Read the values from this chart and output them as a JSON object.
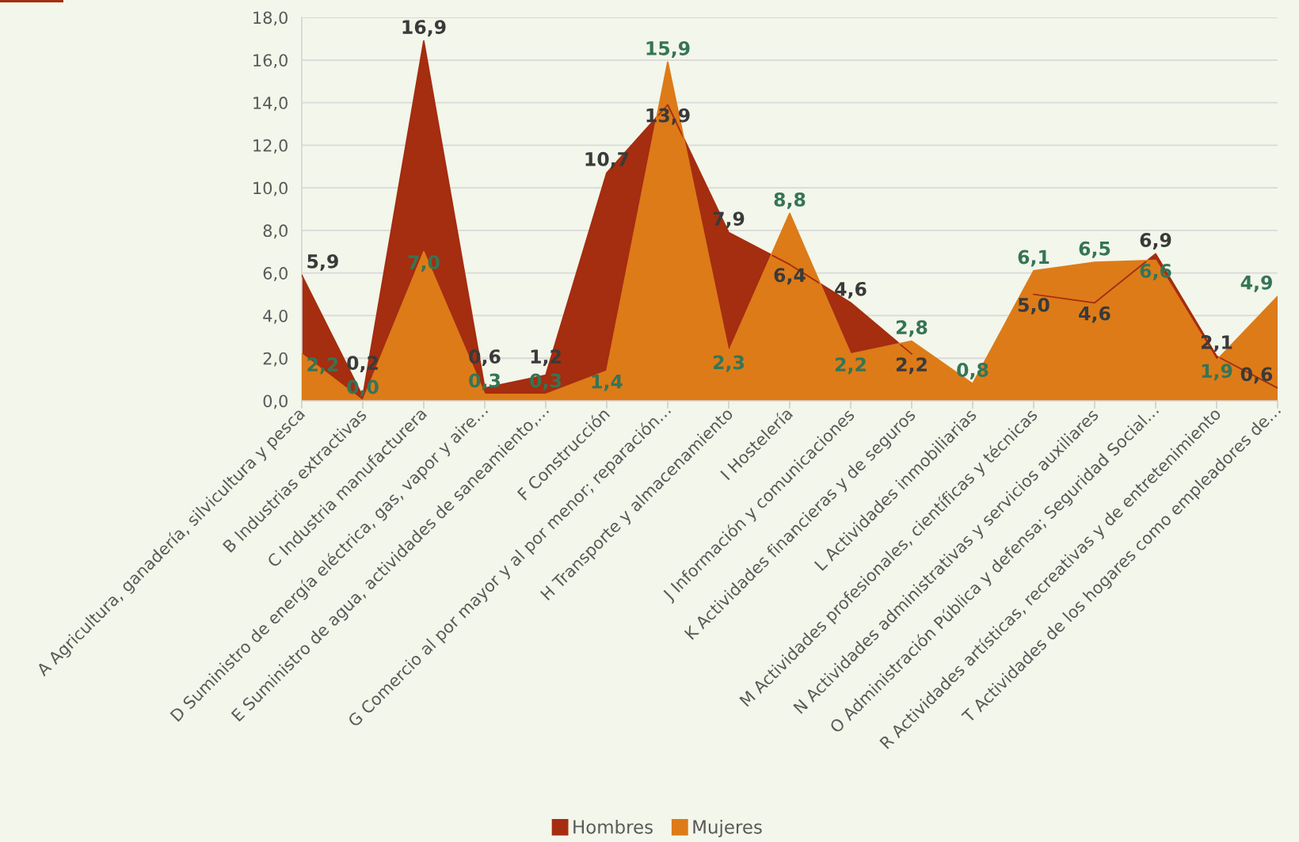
{
  "chart_data": {
    "type": "area",
    "categories": [
      "A Agricultura, ganadería, silvicultura y pesca",
      "B Industrias extractivas",
      "C Industria manufacturera",
      "D Suministro de energía eléctrica, gas, vapor y aire…",
      "E Suministro de agua, actividades de saneamiento,…",
      "F Construcción",
      "G Comercio al por mayor y al por menor; reparación…",
      "H Transporte y almacenamiento",
      "I Hostelería",
      "J Información y comunicaciones",
      "K Actividades financieras y de seguros",
      "L Actividades inmobiliarias",
      "M Actividades profesionales, científicas y técnicas",
      "N Actividades administrativas y servicios auxiliares",
      "O Administración Pública y defensa; Seguridad Social…",
      "R Actividades artísticas, recreativas y de entretenimiento",
      "T Actividades de los hogares como empleadores de…"
    ],
    "series": [
      {
        "name": "Hombres",
        "color": "#a52d10",
        "values": [
          5.9,
          0.2,
          16.9,
          0.6,
          1.2,
          10.7,
          13.9,
          7.9,
          6.4,
          4.6,
          2.2,
          null,
          5.0,
          4.6,
          6.9,
          2.1,
          0.6
        ],
        "value_labels": [
          "5,9",
          "0,2",
          "16,9",
          "0,6",
          "1,2",
          "10,7",
          "13,9",
          "7,9",
          "6,4",
          "4,6",
          "2,2",
          null,
          "5,0",
          "4,6",
          "6,9",
          "2,1",
          "0,6"
        ]
      },
      {
        "name": "Mujeres",
        "color": "#dd7b19",
        "values": [
          2.2,
          0.0,
          7.0,
          0.3,
          0.3,
          1.4,
          15.9,
          2.3,
          8.8,
          2.2,
          2.8,
          0.8,
          6.1,
          6.5,
          6.6,
          1.9,
          4.9
        ],
        "value_labels": [
          "2,2",
          "0,0",
          "7,0",
          "0,3",
          "0,3",
          "1,4",
          "15,9",
          "2,3",
          "8,8",
          "2,2",
          "2,8",
          "0,8",
          "6,1",
          "6,5",
          "6,6",
          "1,9",
          "4,9"
        ]
      }
    ],
    "ylim": [
      0,
      18
    ],
    "yticks": [
      {
        "value": 0,
        "label": "0,0"
      },
      {
        "value": 2,
        "label": "2,0"
      },
      {
        "value": 4,
        "label": "4,0"
      },
      {
        "value": 6,
        "label": "6,0"
      },
      {
        "value": 8,
        "label": "8,0"
      },
      {
        "value": 10,
        "label": "10,0"
      },
      {
        "value": 12,
        "label": "12,0"
      },
      {
        "value": 14,
        "label": "14,0"
      },
      {
        "value": 16,
        "label": "16,0"
      },
      {
        "value": 18,
        "label": "18,0"
      }
    ],
    "grid": "y",
    "legend": "bottom"
  }
}
